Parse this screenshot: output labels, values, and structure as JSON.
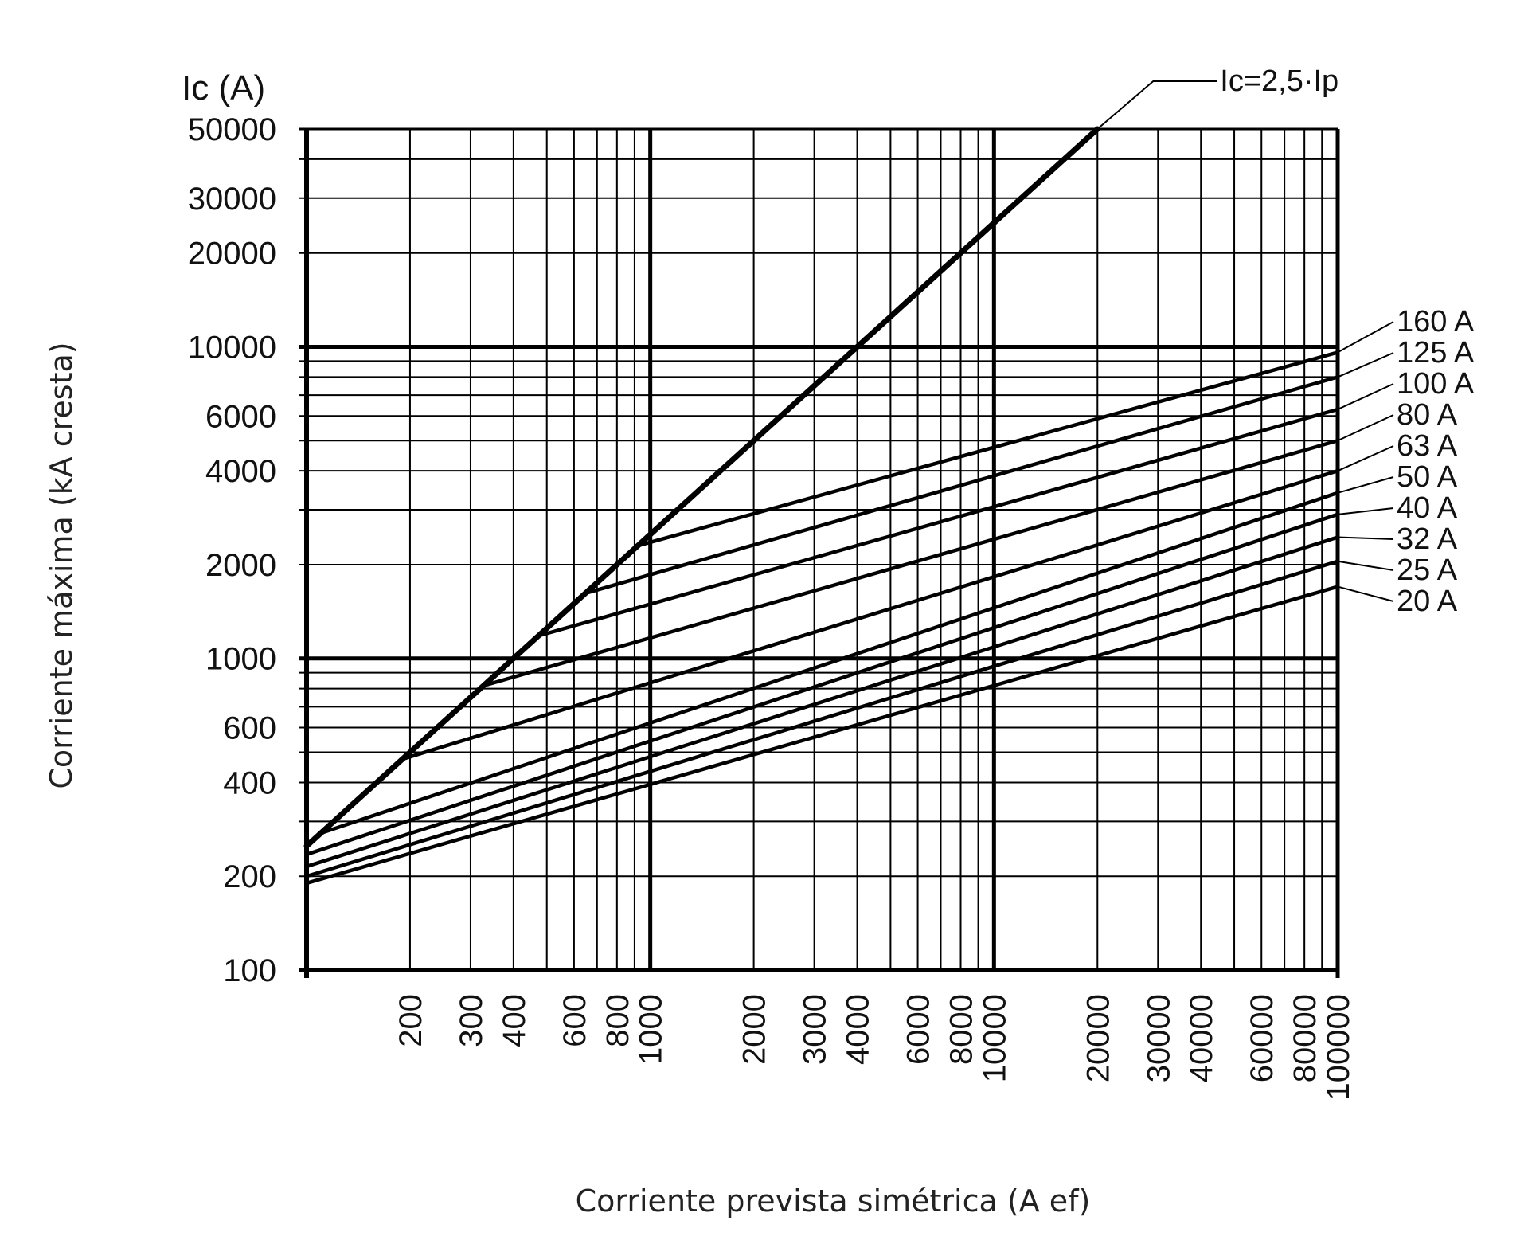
{
  "chart_data": {
    "type": "line",
    "title": "Ic (A)",
    "xlabel": "Corriente prevista simétrica (A ef)",
    "ylabel": "Corriente máxima (kA cresta)",
    "x_scale": "log",
    "y_scale": "log",
    "xlim": [
      100,
      100000
    ],
    "ylim": [
      100,
      50000
    ],
    "grid": true,
    "x_ticks": [
      200,
      300,
      400,
      600,
      800,
      1000,
      2000,
      3000,
      4000,
      6000,
      8000,
      10000,
      20000,
      30000,
      40000,
      60000,
      80000,
      100000
    ],
    "x_tick_labels": [
      "200",
      "300",
      "400",
      "600",
      "800",
      "1000",
      "2000",
      "3000",
      "4000",
      "6000",
      "8000",
      "10000",
      "20000",
      "30000",
      "40000",
      "60000",
      "80000",
      "100000"
    ],
    "y_ticks": [
      100,
      200,
      400,
      600,
      1000,
      2000,
      4000,
      6000,
      10000,
      20000,
      30000,
      50000
    ],
    "y_tick_labels": [
      "100",
      "200",
      "400",
      "600",
      "1000",
      "2000",
      "4000",
      "6000",
      "10000",
      "20000",
      "30000",
      "50000"
    ],
    "envelope": {
      "name": "Ic=2,5·Ip",
      "x": [
        100,
        20000
      ],
      "y": [
        250,
        50000
      ]
    },
    "series": [
      {
        "name": "160 A",
        "x": [
          920,
          100000
        ],
        "y": [
          2300,
          9600
        ]
      },
      {
        "name": "125 A",
        "x": [
          650,
          100000
        ],
        "y": [
          1620,
          8000
        ]
      },
      {
        "name": "100 A",
        "x": [
          470,
          100000
        ],
        "y": [
          1180,
          6300
        ]
      },
      {
        "name": "80 A",
        "x": [
          330,
          100000
        ],
        "y": [
          820,
          5000
        ]
      },
      {
        "name": "63 A",
        "x": [
          190,
          100000
        ],
        "y": [
          475,
          4000
        ]
      },
      {
        "name": "50 A",
        "x": [
          110,
          100000
        ],
        "y": [
          275,
          3400
        ]
      },
      {
        "name": "40 A",
        "x": [
          100,
          100000
        ],
        "y": [
          235,
          2900
        ]
      },
      {
        "name": "32 A",
        "x": [
          100,
          100000
        ],
        "y": [
          215,
          2450
        ]
      },
      {
        "name": "25 A",
        "x": [
          100,
          100000
        ],
        "y": [
          200,
          2050
        ]
      },
      {
        "name": "20 A",
        "x": [
          100,
          100000
        ],
        "y": [
          190,
          1700
        ]
      }
    ]
  }
}
